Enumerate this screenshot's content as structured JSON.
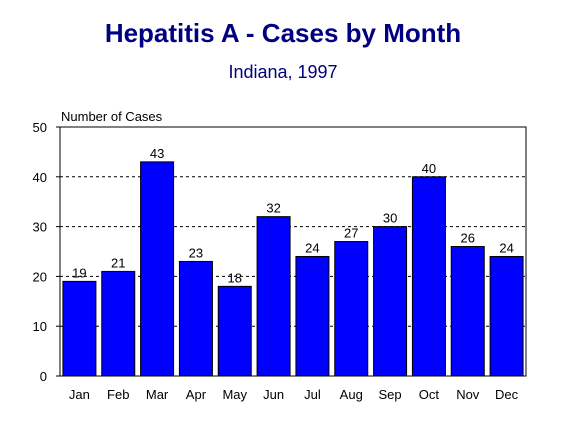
{
  "chart_data": {
    "type": "bar",
    "title": "Hepatitis A - Cases by Month",
    "subtitle": "Indiana, 1997",
    "ylabel": "Number of Cases",
    "xlabel": "",
    "categories": [
      "Jan",
      "Feb",
      "Mar",
      "Apr",
      "May",
      "Jun",
      "Jul",
      "Aug",
      "Sep",
      "Oct",
      "Nov",
      "Dec"
    ],
    "values": [
      19,
      21,
      43,
      23,
      18,
      32,
      24,
      27,
      30,
      40,
      26,
      24
    ],
    "value_labels": [
      "19",
      "21",
      "43",
      "23",
      "18",
      "32",
      "24",
      "27",
      "30",
      "40",
      "26",
      "24"
    ],
    "ylim": [
      0,
      50
    ],
    "yticks": [
      "0",
      "10",
      "20",
      "30",
      "40",
      "50"
    ],
    "grid": "dashed horizontal",
    "legend": "none",
    "bar_color": "#0000FF",
    "title_color": "#000080"
  }
}
